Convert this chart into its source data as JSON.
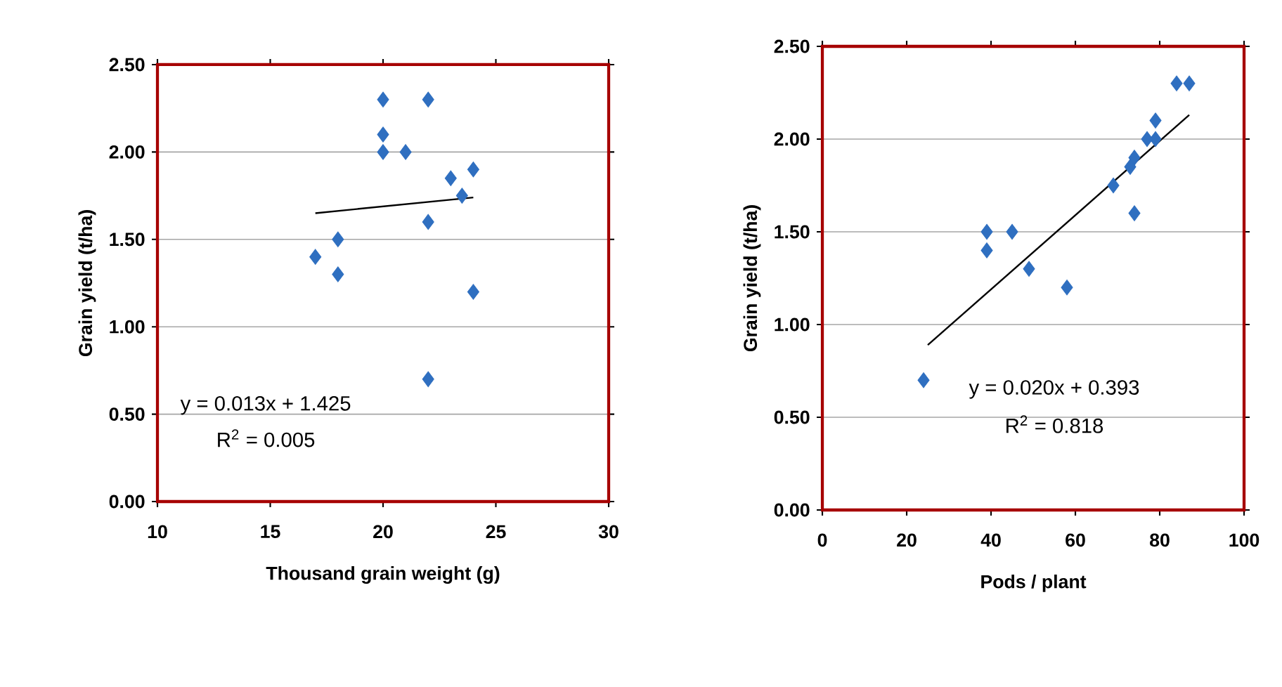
{
  "chart_data": [
    {
      "type": "scatter",
      "xlabel": "Thousand grain weight (g)",
      "ylabel": "Grain yield (t/ha)",
      "xlim": [
        10,
        30
      ],
      "xticks": [
        10,
        15,
        20,
        25,
        30
      ],
      "ylim": [
        0,
        2.5
      ],
      "yticks": [
        {
          "value": 0,
          "label": "0.00"
        },
        {
          "value": 0.5,
          "label": "0.50"
        },
        {
          "value": 1,
          "label": "1.00"
        },
        {
          "value": 1.5,
          "label": "1.50"
        },
        {
          "value": 2,
          "label": "2.00"
        },
        {
          "value": 2.5,
          "label": "2.50"
        }
      ],
      "grid": "y",
      "series": [
        {
          "marker": "diamond",
          "color": "#2f6fc0",
          "x": [
            20,
            22,
            20,
            20,
            21,
            23,
            24,
            23.5,
            22,
            18,
            17,
            18,
            24,
            22
          ],
          "values": [
            2.3,
            2.3,
            2.1,
            2.0,
            2.0,
            1.85,
            1.9,
            1.75,
            1.6,
            1.5,
            1.4,
            1.3,
            1.2,
            0.7
          ]
        },
        {
          "type": "line",
          "color": "#000000",
          "x": [
            17,
            24
          ],
          "values": [
            1.65,
            1.74
          ]
        }
      ],
      "annotations": [
        "y = 0.013x + 1.425",
        "R$^{2}$ = 0.005"
      ]
    },
    {
      "type": "scatter",
      "xlabel": "Pods / plant",
      "ylabel": "Grain yield (t/ha)",
      "xlim": [
        0,
        100
      ],
      "xticks": [
        0,
        20,
        40,
        60,
        80,
        100
      ],
      "ylim": [
        0,
        2.5
      ],
      "yticks": [
        {
          "value": 0,
          "label": "0.00"
        },
        {
          "value": 0.5,
          "label": "0.50"
        },
        {
          "value": 1,
          "label": "1.00"
        },
        {
          "value": 1.5,
          "label": "1.50"
        },
        {
          "value": 2,
          "label": "2.00"
        },
        {
          "value": 2.5,
          "label": "2.50"
        }
      ],
      "grid": "y",
      "series": [
        {
          "marker": "diamond",
          "color": "#2f6fc0",
          "x": [
            24,
            39,
            39,
            45,
            49,
            58,
            69,
            73,
            74,
            74,
            77,
            79,
            79,
            84,
            87
          ],
          "values": [
            0.7,
            1.5,
            1.4,
            1.5,
            1.3,
            1.2,
            1.75,
            1.85,
            1.9,
            1.6,
            2.0,
            2.0,
            2.1,
            2.3,
            2.3
          ]
        },
        {
          "type": "line",
          "color": "#000000",
          "x": [
            25,
            87
          ],
          "values": [
            0.89,
            2.13
          ]
        }
      ],
      "annotations": [
        "y = 0.020x + 0.393",
        "R$^{2}$ = 0.818"
      ]
    }
  ]
}
